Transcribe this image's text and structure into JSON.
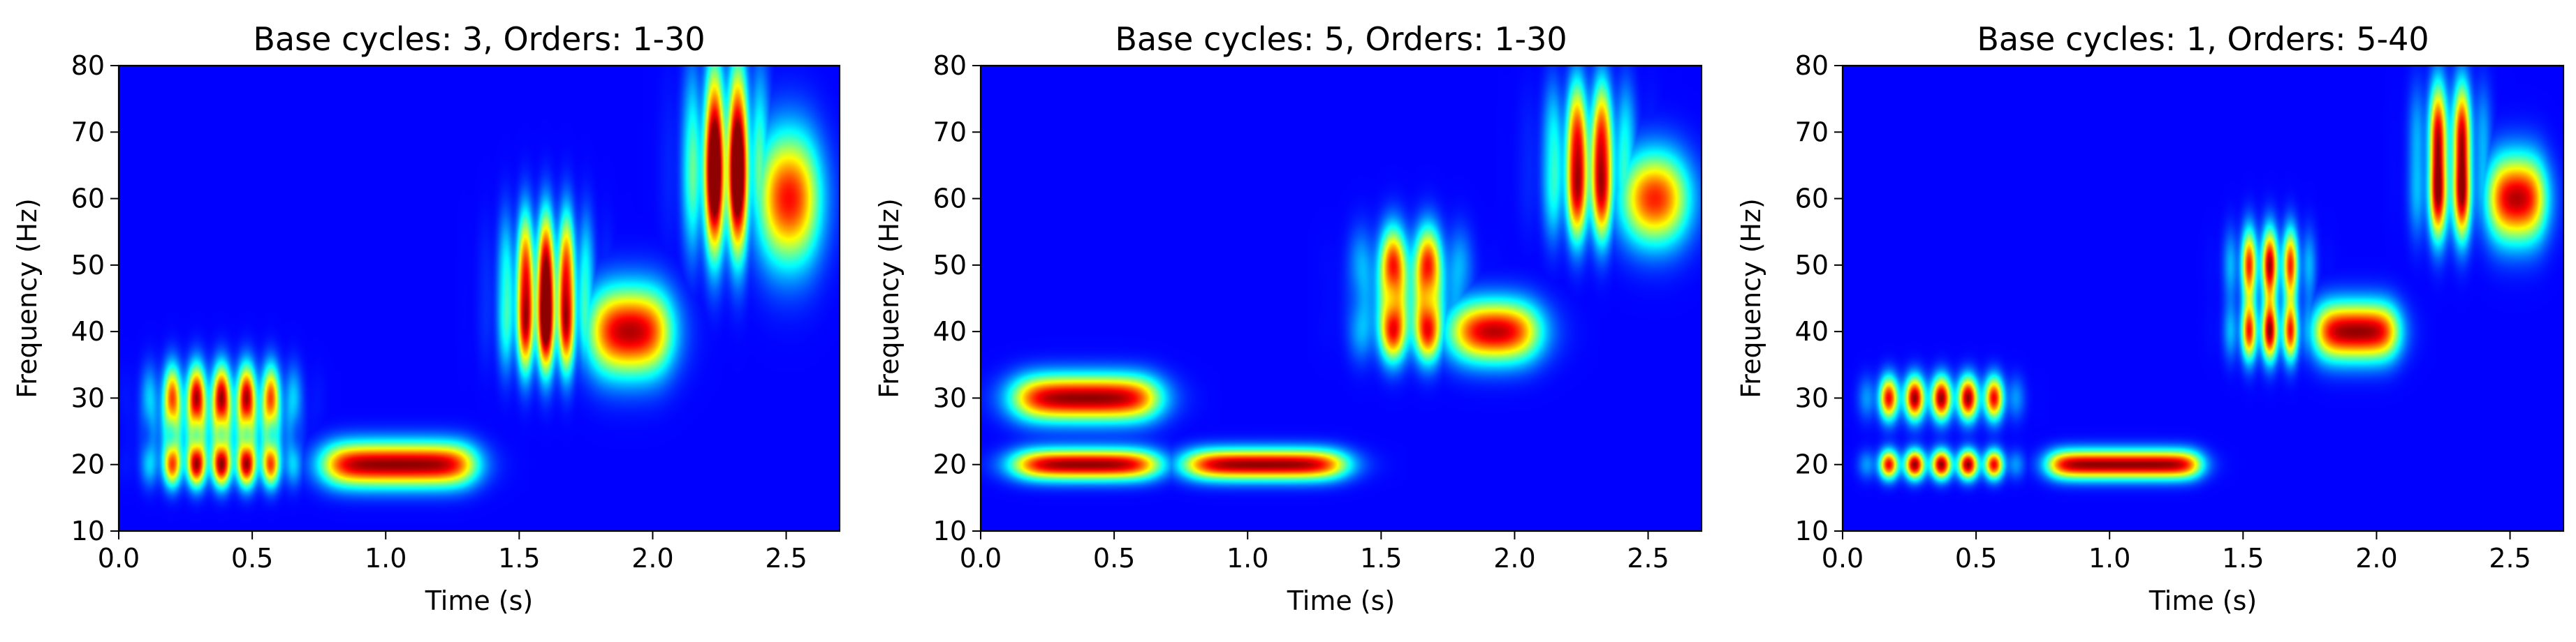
{
  "chart_data": [
    {
      "type": "heatmap",
      "title": "Base cycles: 3, Orders: 1-30",
      "xlabel": "Time (s)",
      "ylabel": "Frequency (Hz)",
      "xlim": [
        0.0,
        2.7
      ],
      "ylim": [
        10,
        80
      ],
      "xticks": [
        0.0,
        0.5,
        1.0,
        1.5,
        2.0,
        2.5
      ],
      "xtick_labels": [
        "0.0",
        "0.5",
        "1.0",
        "1.5",
        "2.0",
        "2.5"
      ],
      "yticks": [
        10,
        20,
        30,
        40,
        50,
        60,
        70,
        80
      ],
      "ytick_labels": [
        "10",
        "20",
        "30",
        "40",
        "50",
        "60",
        "70",
        "80"
      ],
      "colormap": "jet",
      "background_color": "#00008f",
      "blocks": [
        {
          "t_start": 0.15,
          "t_end": 0.62,
          "freqs": [
            20,
            30
          ],
          "beats": 5,
          "bridge": true
        },
        {
          "t_start": 0.78,
          "t_end": 1.32,
          "freqs": [
            20
          ],
          "beats": 0,
          "bridge": false
        },
        {
          "t_start": 1.48,
          "t_end": 1.72,
          "freqs": [
            40,
            50
          ],
          "beats": 3,
          "bridge": true
        },
        {
          "t_start": 1.78,
          "t_end": 2.05,
          "freqs": [
            40
          ],
          "beats": 0,
          "bridge": false
        },
        {
          "t_start": 2.18,
          "t_end": 2.37,
          "freqs": [
            60,
            70
          ],
          "beats": 2,
          "bridge": true
        },
        {
          "t_start": 2.42,
          "t_end": 2.6,
          "freqs": [
            60
          ],
          "beats": 0,
          "bridge": false
        }
      ],
      "spread_time": 0.035,
      "spread_freq_per_hz": 0.115
    },
    {
      "type": "heatmap",
      "title": "Base cycles: 5, Orders: 1-30",
      "xlabel": "Time (s)",
      "ylabel": "Frequency (Hz)",
      "xlim": [
        0.0,
        2.7
      ],
      "ylim": [
        10,
        80
      ],
      "xticks": [
        0.0,
        0.5,
        1.0,
        1.5,
        2.0,
        2.5
      ],
      "xtick_labels": [
        "0.0",
        "0.5",
        "1.0",
        "1.5",
        "2.0",
        "2.5"
      ],
      "yticks": [
        10,
        20,
        30,
        40,
        50,
        60,
        70,
        80
      ],
      "ytick_labels": [
        "10",
        "20",
        "30",
        "40",
        "50",
        "60",
        "70",
        "80"
      ],
      "colormap": "jet",
      "background_color": "#00008f",
      "blocks": [
        {
          "t_start": 0.14,
          "t_end": 0.65,
          "freqs": [
            20,
            30
          ],
          "beats": 0,
          "bridge": false
        },
        {
          "t_start": 0.78,
          "t_end": 1.35,
          "freqs": [
            20
          ],
          "beats": 0,
          "bridge": false
        },
        {
          "t_start": 1.47,
          "t_end": 1.75,
          "freqs": [
            40,
            50
          ],
          "beats": 2,
          "bridge": true
        },
        {
          "t_start": 1.78,
          "t_end": 2.07,
          "freqs": [
            40
          ],
          "beats": 0,
          "bridge": false
        },
        {
          "t_start": 2.18,
          "t_end": 2.38,
          "freqs": [
            60,
            70
          ],
          "beats": 2,
          "bridge": true
        },
        {
          "t_start": 2.43,
          "t_end": 2.62,
          "freqs": [
            60
          ],
          "beats": 0,
          "bridge": false
        }
      ],
      "spread_time": 0.04,
      "spread_freq_per_hz": 0.08
    },
    {
      "type": "heatmap",
      "title": "Base cycles: 1, Orders: 5-40",
      "xlabel": "Time (s)",
      "ylabel": "Frequency (Hz)",
      "xlim": [
        0.0,
        2.7
      ],
      "ylim": [
        10,
        80
      ],
      "xticks": [
        0.0,
        0.5,
        1.0,
        1.5,
        2.0,
        2.5
      ],
      "xtick_labels": [
        "0.0",
        "0.5",
        "1.0",
        "1.5",
        "2.0",
        "2.5"
      ],
      "yticks": [
        10,
        20,
        30,
        40,
        50,
        60,
        70,
        80
      ],
      "ytick_labels": [
        "10",
        "20",
        "30",
        "40",
        "50",
        "60",
        "70",
        "80"
      ],
      "colormap": "jet",
      "background_color": "#00008f",
      "blocks": [
        {
          "t_start": 0.12,
          "t_end": 0.62,
          "freqs": [
            20,
            30
          ],
          "beats": 5,
          "bridge": false
        },
        {
          "t_start": 0.78,
          "t_end": 1.33,
          "freqs": [
            20
          ],
          "beats": 0,
          "bridge": false
        },
        {
          "t_start": 1.48,
          "t_end": 1.72,
          "freqs": [
            40,
            50
          ],
          "beats": 3,
          "bridge": false
        },
        {
          "t_start": 1.78,
          "t_end": 2.07,
          "freqs": [
            40
          ],
          "beats": 0,
          "bridge": false
        },
        {
          "t_start": 2.18,
          "t_end": 2.37,
          "freqs": [
            60,
            70
          ],
          "beats": 2,
          "bridge": false
        },
        {
          "t_start": 2.43,
          "t_end": 2.62,
          "freqs": [
            60
          ],
          "beats": 0,
          "bridge": false
        }
      ],
      "spread_time": 0.025,
      "spread_freq_per_hz": 0.075
    }
  ]
}
